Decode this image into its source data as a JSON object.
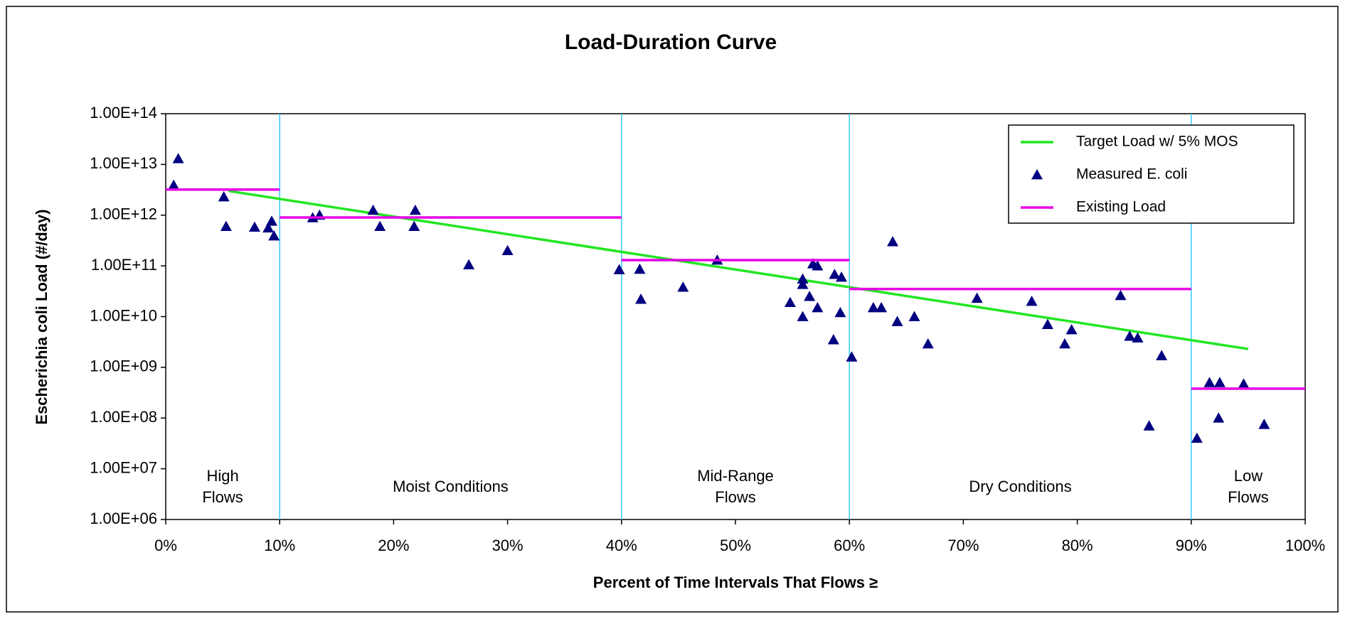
{
  "chart_data": {
    "type": "scatter",
    "title": "Load-Duration Curve",
    "xlabel": "Percent of Time Intervals That Flows ≥",
    "ylabel": "Escherichia coli Load (#/day)",
    "xlim": [
      0,
      100
    ],
    "xticks": [
      {
        "value": 0,
        "label": "0%"
      },
      {
        "value": 10,
        "label": "10%"
      },
      {
        "value": 20,
        "label": "20%"
      },
      {
        "value": 30,
        "label": "30%"
      },
      {
        "value": 40,
        "label": "40%"
      },
      {
        "value": 50,
        "label": "50%"
      },
      {
        "value": 60,
        "label": "60%"
      },
      {
        "value": 70,
        "label": "70%"
      },
      {
        "value": 80,
        "label": "80%"
      },
      {
        "value": 90,
        "label": "90%"
      },
      {
        "value": 100,
        "label": "100%"
      }
    ],
    "ylim": [
      1000000.0,
      100000000000000.0
    ],
    "yscale": "log",
    "yticks": [
      {
        "value": 1000000.0,
        "label": "1.00E+06"
      },
      {
        "value": 10000000.0,
        "label": "1.00E+07"
      },
      {
        "value": 100000000.0,
        "label": "1.00E+08"
      },
      {
        "value": 1000000000.0,
        "label": "1.00E+09"
      },
      {
        "value": 10000000000.0,
        "label": "1.00E+10"
      },
      {
        "value": 100000000000.0,
        "label": "1.00E+11"
      },
      {
        "value": 1000000000000.0,
        "label": "1.00E+12"
      },
      {
        "value": 10000000000000.0,
        "label": "1.00E+13"
      },
      {
        "value": 100000000000000.0,
        "label": "1.00E+14"
      }
    ],
    "dividers": [
      10,
      40,
      60,
      90
    ],
    "divider_color": "#33ccff",
    "zones": [
      {
        "lines": [
          "High",
          "Flows"
        ]
      },
      {
        "lines": [
          "Moist Conditions"
        ]
      },
      {
        "lines": [
          "Mid-Range",
          "Flows"
        ]
      },
      {
        "lines": [
          "Dry Conditions"
        ]
      },
      {
        "lines": [
          "Low",
          "Flows"
        ]
      }
    ],
    "legend": "upper right",
    "series": [
      {
        "name": "Target Load w/ 5% MOS",
        "kind": "line",
        "color": "#22e622",
        "x": [
          5.5,
          95
        ],
        "values": [
          3000000000000.0,
          2300000000.0
        ]
      },
      {
        "name": "Measured E. coli",
        "kind": "scatter",
        "color": "#000080",
        "x": [
          0.7,
          1.1,
          5.1,
          5.3,
          7.8,
          9.0,
          9.3,
          9.5,
          12.9,
          13.5,
          18.2,
          18.8,
          21.8,
          21.9,
          26.6,
          30.0,
          39.8,
          41.6,
          41.7,
          45.4,
          48.4,
          54.8,
          55.9,
          55.9,
          55.9,
          56.5,
          56.8,
          57.2,
          57.2,
          58.6,
          58.7,
          59.3,
          59.2,
          60.2,
          62.1,
          62.8,
          63.8,
          64.2,
          65.7,
          66.9,
          71.2,
          76.0,
          77.4,
          78.9,
          79.5,
          83.8,
          84.6,
          85.3,
          86.3,
          87.4,
          90.5,
          91.6,
          92.4,
          92.5,
          94.6,
          96.4
        ],
        "values": [
          3900000000000.0,
          13000000000000.0,
          2300000000000.0,
          600000000000.0,
          580000000000.0,
          560000000000.0,
          760000000000.0,
          390000000000.0,
          890000000000.0,
          1000000000000.0,
          1250000000000.0,
          600000000000.0,
          600000000000.0,
          1250000000000.0,
          105000000000.0,
          200000000000.0,
          84000000000.0,
          86000000000.0,
          22000000000.0,
          38000000000.0,
          130000000000.0,
          19000000000.0,
          55000000000.0,
          43000000000.0,
          10000000000.0,
          25000000000.0,
          110000000000.0,
          100000000000.0,
          15000000000.0,
          3500000000.0,
          68000000000.0,
          60000000000.0,
          12000000000.0,
          1600000000.0,
          15000000000.0,
          15000000000.0,
          300000000000.0,
          8000000000.0,
          10000000000.0,
          2900000000.0,
          23000000000.0,
          20000000000.0,
          7000000000.0,
          2900000000.0,
          5500000000.0,
          26000000000.0,
          4100000000.0,
          3800000000.0,
          70000000.0,
          1700000000.0,
          40000000.0,
          500000000.0,
          100000000.0,
          500000000.0,
          470000000.0,
          75000000.0
        ]
      },
      {
        "name": "Existing Load",
        "kind": "line",
        "color": "#e600e6",
        "x": [
          0,
          10,
          10,
          10,
          40,
          40,
          40,
          60,
          60,
          60,
          90,
          90,
          90,
          100
        ],
        "values": [
          3200000000000.0,
          3200000000000.0,
          null,
          900000000000.0,
          900000000000.0,
          null,
          130000000000.0,
          130000000000.0,
          null,
          35000000000.0,
          35000000000.0,
          null,
          380000000.0,
          380000000.0
        ]
      }
    ]
  }
}
